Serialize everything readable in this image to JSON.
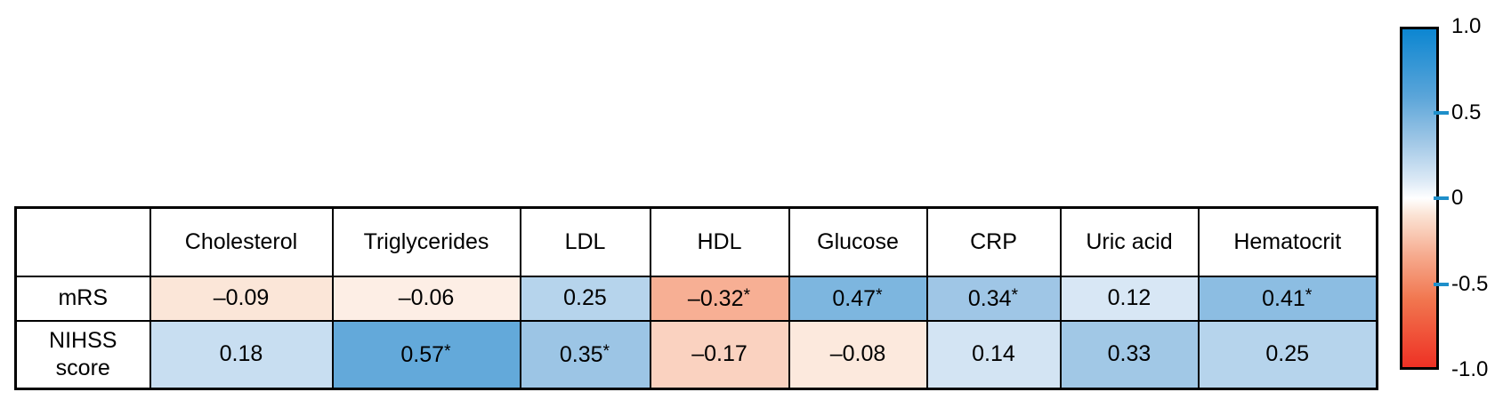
{
  "chart_data": {
    "type": "heatmap",
    "title": "",
    "corner_label": "",
    "columns": [
      "Cholesterol",
      "Triglycerides",
      "LDL",
      "HDL",
      "Glucose",
      "CRP",
      "Uric acid",
      "Hematocrit"
    ],
    "rows": [
      {
        "label": "mRS",
        "values": [
          -0.09,
          -0.06,
          0.25,
          -0.32,
          0.47,
          0.34,
          0.12,
          0.41
        ],
        "significant": [
          false,
          false,
          false,
          true,
          true,
          true,
          false,
          true
        ]
      },
      {
        "label": "NIHSS\nscore",
        "values": [
          0.18,
          0.57,
          0.35,
          -0.17,
          -0.08,
          0.14,
          0.33,
          0.25
        ],
        "significant": [
          false,
          true,
          true,
          false,
          false,
          false,
          false,
          false
        ]
      }
    ],
    "value_range": [
      -1,
      1
    ],
    "minus_glyph": "–",
    "significance_glyph": "*",
    "colorbar": {
      "position": "right",
      "tick_labels": [
        "1.0",
        "0.5",
        "0",
        "-0.5",
        "-1.0"
      ],
      "tick_values": [
        1,
        0.5,
        0,
        -0.5,
        -1
      ]
    },
    "colormap": {
      "positive_stops": [
        [
          0,
          "#ffffff"
        ],
        [
          0.1,
          "#ddeaf6"
        ],
        [
          0.35,
          "#9cc5e5"
        ],
        [
          0.6,
          "#5ba5d9"
        ],
        [
          1,
          "#0c86d1"
        ]
      ],
      "negative_stops": [
        [
          0,
          "#ffffff"
        ],
        [
          0.1,
          "#fbe3d4"
        ],
        [
          0.35,
          "#f6a88b"
        ],
        [
          0.6,
          "#f1764f"
        ],
        [
          1,
          "#ee3124"
        ]
      ],
      "tick_color": "#1e8fca",
      "border_color": "#000000",
      "text_color": "#000000"
    }
  }
}
